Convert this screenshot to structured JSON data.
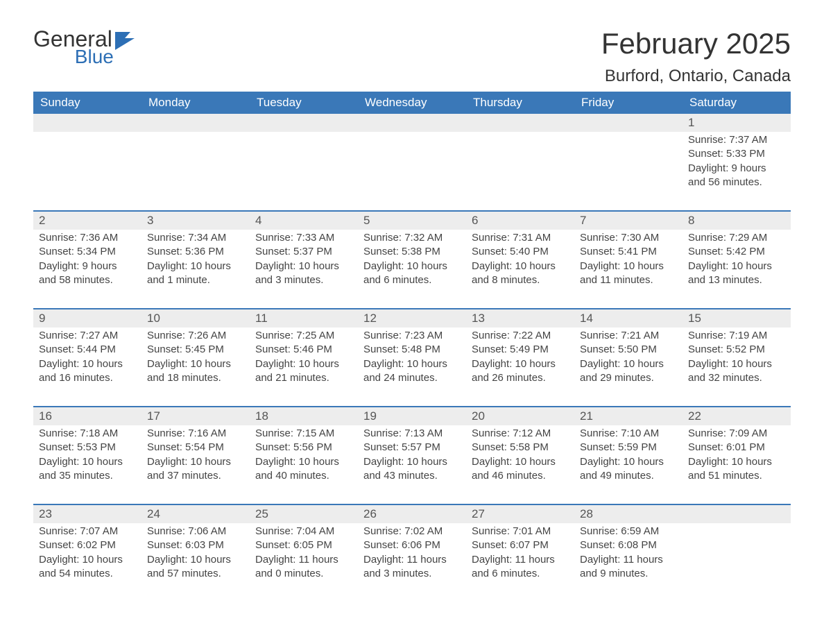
{
  "colors": {
    "header_bg": "#3a78b8",
    "header_text": "#ffffff",
    "daynum_bg": "#ededed",
    "daynum_border_top": "#3a78b8",
    "body_text": "#444444",
    "title_text": "#333333",
    "logo_blue": "#2d6fb5",
    "page_bg": "#ffffff"
  },
  "typography": {
    "title_fontsize": 42,
    "location_fontsize": 24,
    "header_fontsize": 17,
    "daynum_fontsize": 17,
    "body_fontsize": 15
  },
  "logo": {
    "line1": "General",
    "line2": "Blue"
  },
  "title": "February 2025",
  "location": "Burford, Ontario, Canada",
  "weekdays": [
    "Sunday",
    "Monday",
    "Tuesday",
    "Wednesday",
    "Thursday",
    "Friday",
    "Saturday"
  ],
  "weeks": [
    {
      "nums": [
        "",
        "",
        "",
        "",
        "",
        "",
        "1"
      ],
      "cells": [
        {},
        {},
        {},
        {},
        {},
        {},
        {
          "sunrise": "Sunrise: 7:37 AM",
          "sunset": "Sunset: 5:33 PM",
          "dl1": "Daylight: 9 hours",
          "dl2": "and 56 minutes."
        }
      ]
    },
    {
      "nums": [
        "2",
        "3",
        "4",
        "5",
        "6",
        "7",
        "8"
      ],
      "cells": [
        {
          "sunrise": "Sunrise: 7:36 AM",
          "sunset": "Sunset: 5:34 PM",
          "dl1": "Daylight: 9 hours",
          "dl2": "and 58 minutes."
        },
        {
          "sunrise": "Sunrise: 7:34 AM",
          "sunset": "Sunset: 5:36 PM",
          "dl1": "Daylight: 10 hours",
          "dl2": "and 1 minute."
        },
        {
          "sunrise": "Sunrise: 7:33 AM",
          "sunset": "Sunset: 5:37 PM",
          "dl1": "Daylight: 10 hours",
          "dl2": "and 3 minutes."
        },
        {
          "sunrise": "Sunrise: 7:32 AM",
          "sunset": "Sunset: 5:38 PM",
          "dl1": "Daylight: 10 hours",
          "dl2": "and 6 minutes."
        },
        {
          "sunrise": "Sunrise: 7:31 AM",
          "sunset": "Sunset: 5:40 PM",
          "dl1": "Daylight: 10 hours",
          "dl2": "and 8 minutes."
        },
        {
          "sunrise": "Sunrise: 7:30 AM",
          "sunset": "Sunset: 5:41 PM",
          "dl1": "Daylight: 10 hours",
          "dl2": "and 11 minutes."
        },
        {
          "sunrise": "Sunrise: 7:29 AM",
          "sunset": "Sunset: 5:42 PM",
          "dl1": "Daylight: 10 hours",
          "dl2": "and 13 minutes."
        }
      ]
    },
    {
      "nums": [
        "9",
        "10",
        "11",
        "12",
        "13",
        "14",
        "15"
      ],
      "cells": [
        {
          "sunrise": "Sunrise: 7:27 AM",
          "sunset": "Sunset: 5:44 PM",
          "dl1": "Daylight: 10 hours",
          "dl2": "and 16 minutes."
        },
        {
          "sunrise": "Sunrise: 7:26 AM",
          "sunset": "Sunset: 5:45 PM",
          "dl1": "Daylight: 10 hours",
          "dl2": "and 18 minutes."
        },
        {
          "sunrise": "Sunrise: 7:25 AM",
          "sunset": "Sunset: 5:46 PM",
          "dl1": "Daylight: 10 hours",
          "dl2": "and 21 minutes."
        },
        {
          "sunrise": "Sunrise: 7:23 AM",
          "sunset": "Sunset: 5:48 PM",
          "dl1": "Daylight: 10 hours",
          "dl2": "and 24 minutes."
        },
        {
          "sunrise": "Sunrise: 7:22 AM",
          "sunset": "Sunset: 5:49 PM",
          "dl1": "Daylight: 10 hours",
          "dl2": "and 26 minutes."
        },
        {
          "sunrise": "Sunrise: 7:21 AM",
          "sunset": "Sunset: 5:50 PM",
          "dl1": "Daylight: 10 hours",
          "dl2": "and 29 minutes."
        },
        {
          "sunrise": "Sunrise: 7:19 AM",
          "sunset": "Sunset: 5:52 PM",
          "dl1": "Daylight: 10 hours",
          "dl2": "and 32 minutes."
        }
      ]
    },
    {
      "nums": [
        "16",
        "17",
        "18",
        "19",
        "20",
        "21",
        "22"
      ],
      "cells": [
        {
          "sunrise": "Sunrise: 7:18 AM",
          "sunset": "Sunset: 5:53 PM",
          "dl1": "Daylight: 10 hours",
          "dl2": "and 35 minutes."
        },
        {
          "sunrise": "Sunrise: 7:16 AM",
          "sunset": "Sunset: 5:54 PM",
          "dl1": "Daylight: 10 hours",
          "dl2": "and 37 minutes."
        },
        {
          "sunrise": "Sunrise: 7:15 AM",
          "sunset": "Sunset: 5:56 PM",
          "dl1": "Daylight: 10 hours",
          "dl2": "and 40 minutes."
        },
        {
          "sunrise": "Sunrise: 7:13 AM",
          "sunset": "Sunset: 5:57 PM",
          "dl1": "Daylight: 10 hours",
          "dl2": "and 43 minutes."
        },
        {
          "sunrise": "Sunrise: 7:12 AM",
          "sunset": "Sunset: 5:58 PM",
          "dl1": "Daylight: 10 hours",
          "dl2": "and 46 minutes."
        },
        {
          "sunrise": "Sunrise: 7:10 AM",
          "sunset": "Sunset: 5:59 PM",
          "dl1": "Daylight: 10 hours",
          "dl2": "and 49 minutes."
        },
        {
          "sunrise": "Sunrise: 7:09 AM",
          "sunset": "Sunset: 6:01 PM",
          "dl1": "Daylight: 10 hours",
          "dl2": "and 51 minutes."
        }
      ]
    },
    {
      "nums": [
        "23",
        "24",
        "25",
        "26",
        "27",
        "28",
        ""
      ],
      "cells": [
        {
          "sunrise": "Sunrise: 7:07 AM",
          "sunset": "Sunset: 6:02 PM",
          "dl1": "Daylight: 10 hours",
          "dl2": "and 54 minutes."
        },
        {
          "sunrise": "Sunrise: 7:06 AM",
          "sunset": "Sunset: 6:03 PM",
          "dl1": "Daylight: 10 hours",
          "dl2": "and 57 minutes."
        },
        {
          "sunrise": "Sunrise: 7:04 AM",
          "sunset": "Sunset: 6:05 PM",
          "dl1": "Daylight: 11 hours",
          "dl2": "and 0 minutes."
        },
        {
          "sunrise": "Sunrise: 7:02 AM",
          "sunset": "Sunset: 6:06 PM",
          "dl1": "Daylight: 11 hours",
          "dl2": "and 3 minutes."
        },
        {
          "sunrise": "Sunrise: 7:01 AM",
          "sunset": "Sunset: 6:07 PM",
          "dl1": "Daylight: 11 hours",
          "dl2": "and 6 minutes."
        },
        {
          "sunrise": "Sunrise: 6:59 AM",
          "sunset": "Sunset: 6:08 PM",
          "dl1": "Daylight: 11 hours",
          "dl2": "and 9 minutes."
        },
        {}
      ]
    }
  ]
}
